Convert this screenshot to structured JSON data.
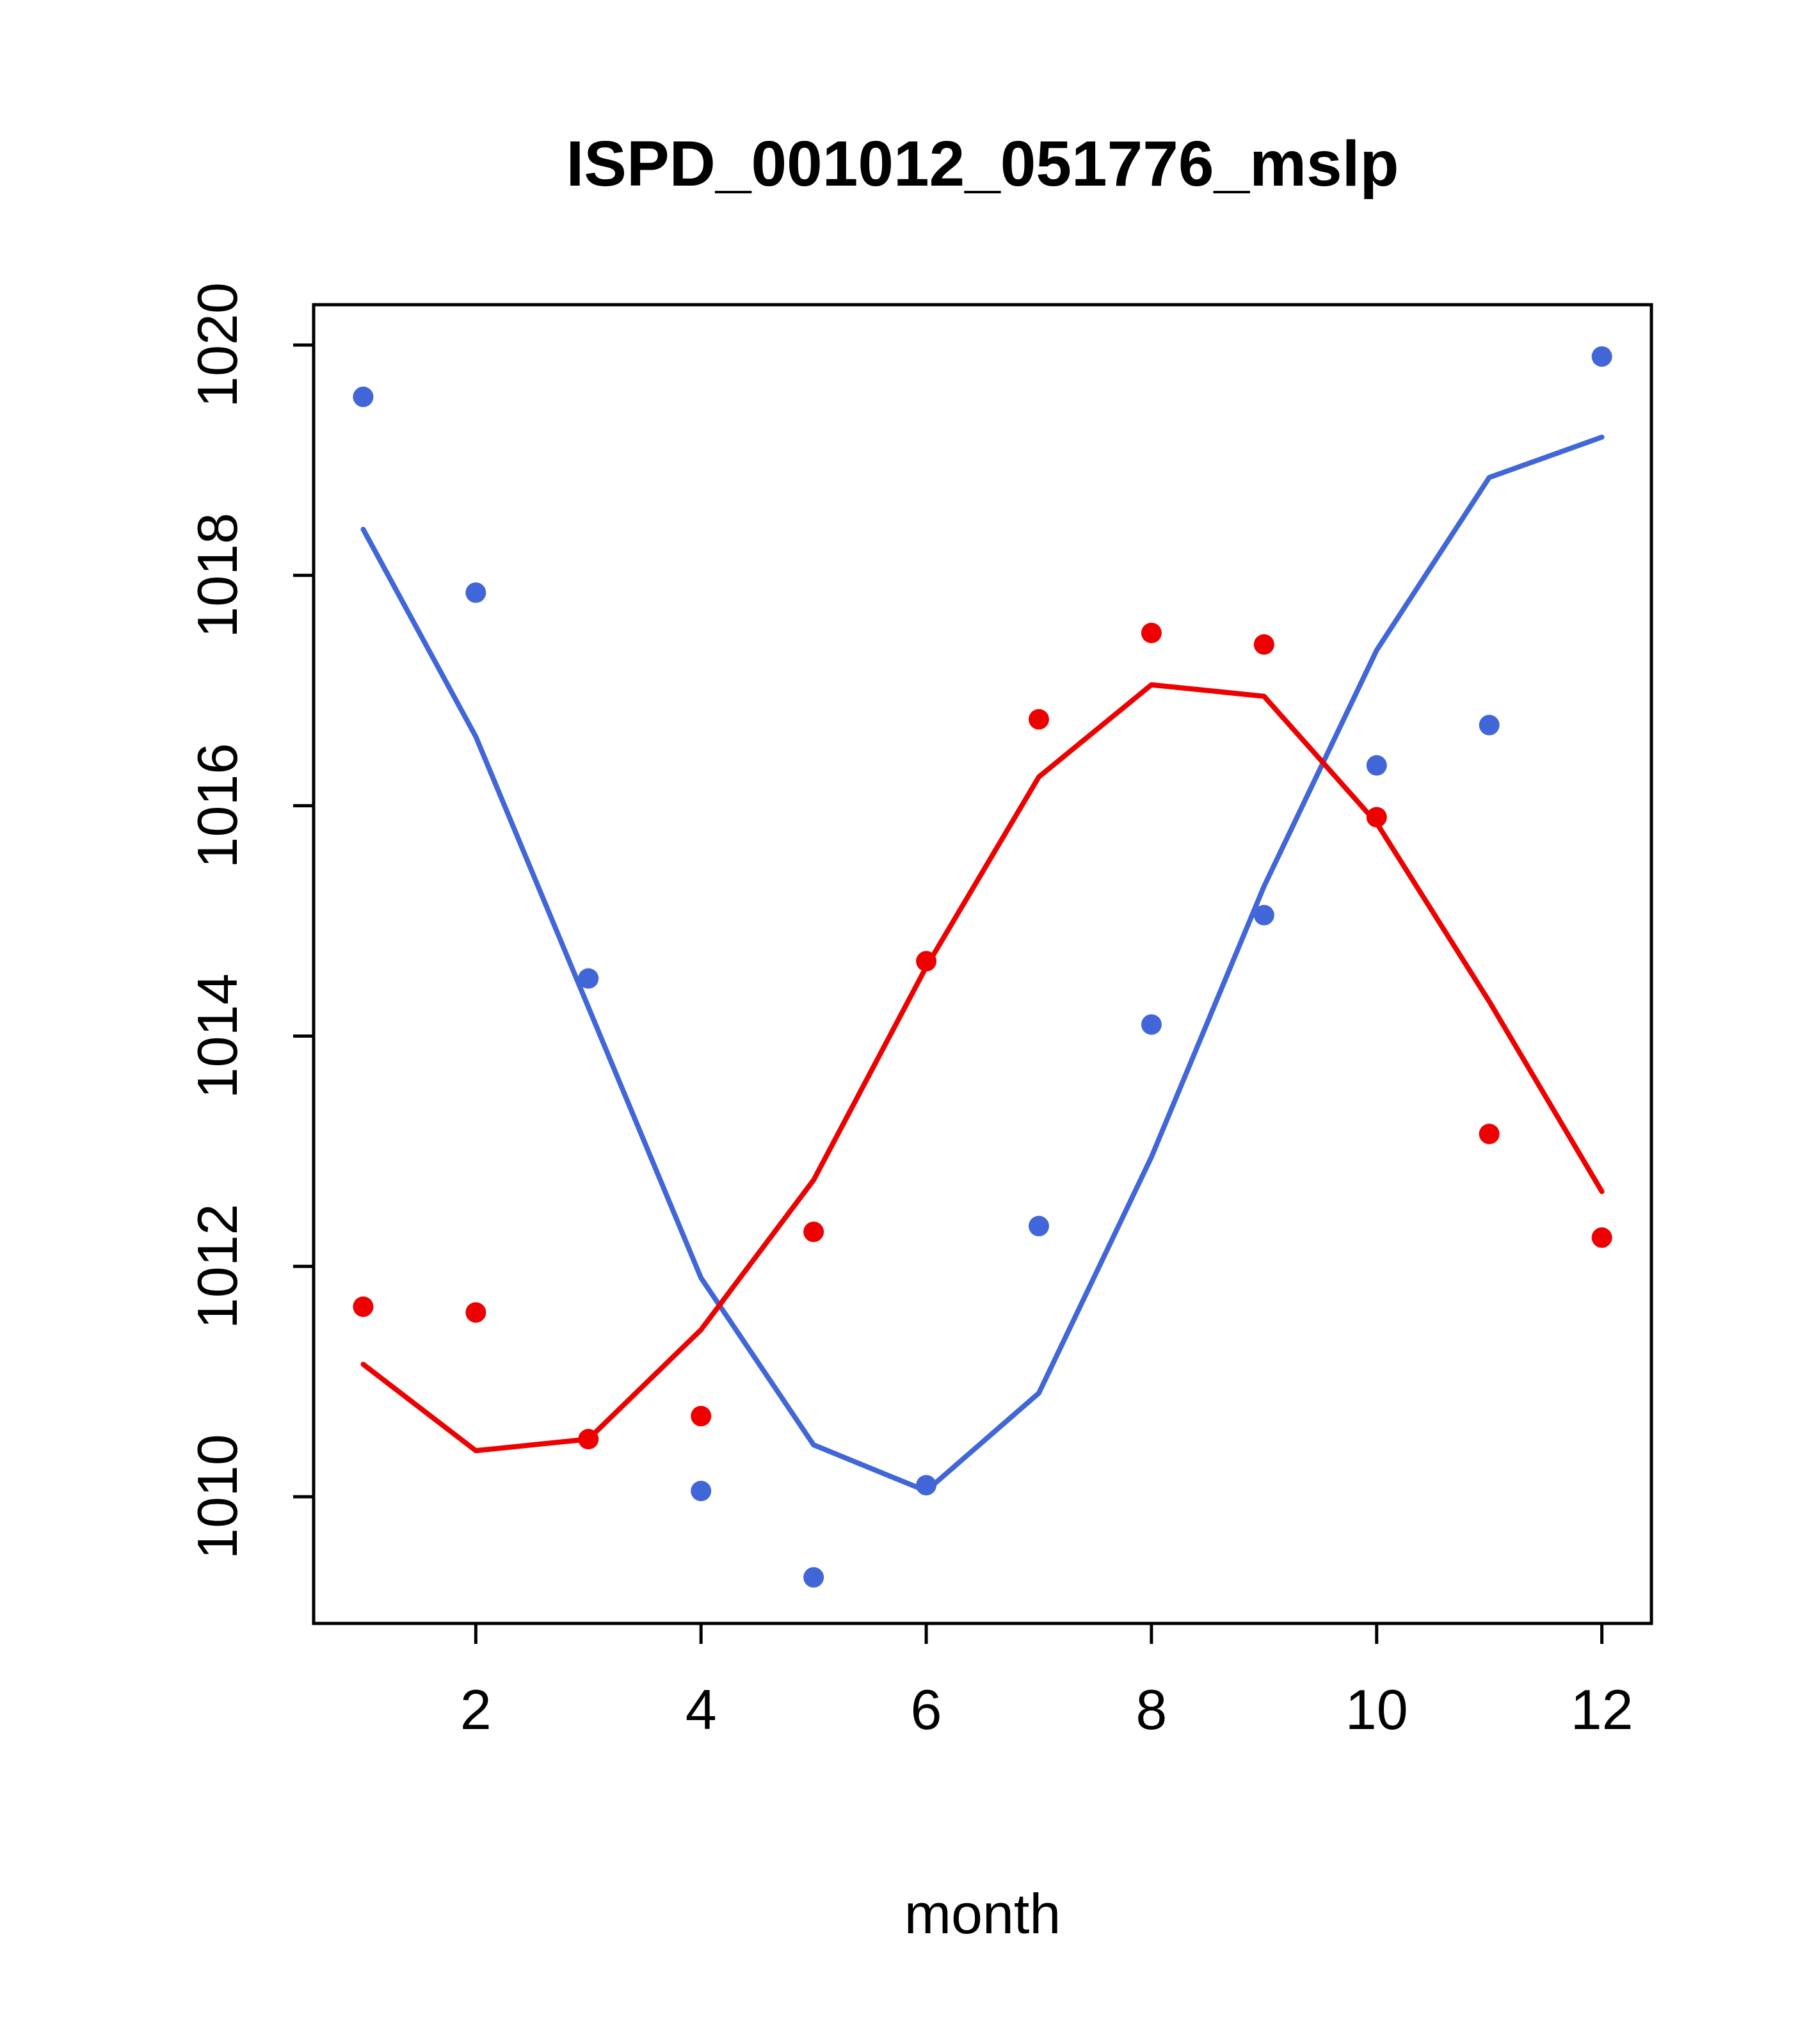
{
  "chart_data": {
    "type": "scatter",
    "title": "ISPD_001012_051776_mslp",
    "xlabel": "month",
    "ylabel": "",
    "grid": false,
    "legend": "none",
    "xlim": [
      0.56,
      12.44
    ],
    "ylim": [
      1008.9,
      1020.35
    ],
    "x_ticks": [
      2,
      4,
      6,
      8,
      10,
      12
    ],
    "y_ticks": [
      1010,
      1012,
      1014,
      1016,
      1018,
      1020
    ],
    "x": [
      1,
      2,
      3,
      4,
      5,
      6,
      7,
      8,
      9,
      10,
      11,
      12
    ],
    "colors": {
      "blue": "#4166D8",
      "red": "#EE0000"
    },
    "series": [
      {
        "name": "blue-monthly-points",
        "kind": "points",
        "color": "#4166D8",
        "values": [
          1019.55,
          1017.85,
          1014.5,
          1010.05,
          1009.3,
          1010.1,
          1012.35,
          1014.1,
          1015.05,
          1016.35,
          1016.7,
          1019.9
        ]
      },
      {
        "name": "blue-trend-line",
        "kind": "line",
        "color": "#4166D8",
        "values": [
          1018.4,
          1016.6,
          1014.25,
          1011.9,
          1010.45,
          1010.05,
          1010.9,
          1012.95,
          1015.3,
          1017.35,
          1018.85,
          1019.2
        ]
      },
      {
        "name": "red-monthly-points",
        "kind": "points",
        "color": "#EE0000",
        "values": [
          1011.65,
          1011.6,
          1010.5,
          1010.7,
          1012.3,
          1014.65,
          1016.75,
          1017.5,
          1017.4,
          1015.9,
          1013.15,
          1012.25
        ]
      },
      {
        "name": "red-trend-line",
        "kind": "line",
        "color": "#EE0000",
        "values": [
          1011.15,
          1010.4,
          1010.5,
          1011.45,
          1012.75,
          1014.6,
          1016.25,
          1017.05,
          1016.95,
          1015.85,
          1014.3,
          1012.65
        ]
      }
    ]
  }
}
